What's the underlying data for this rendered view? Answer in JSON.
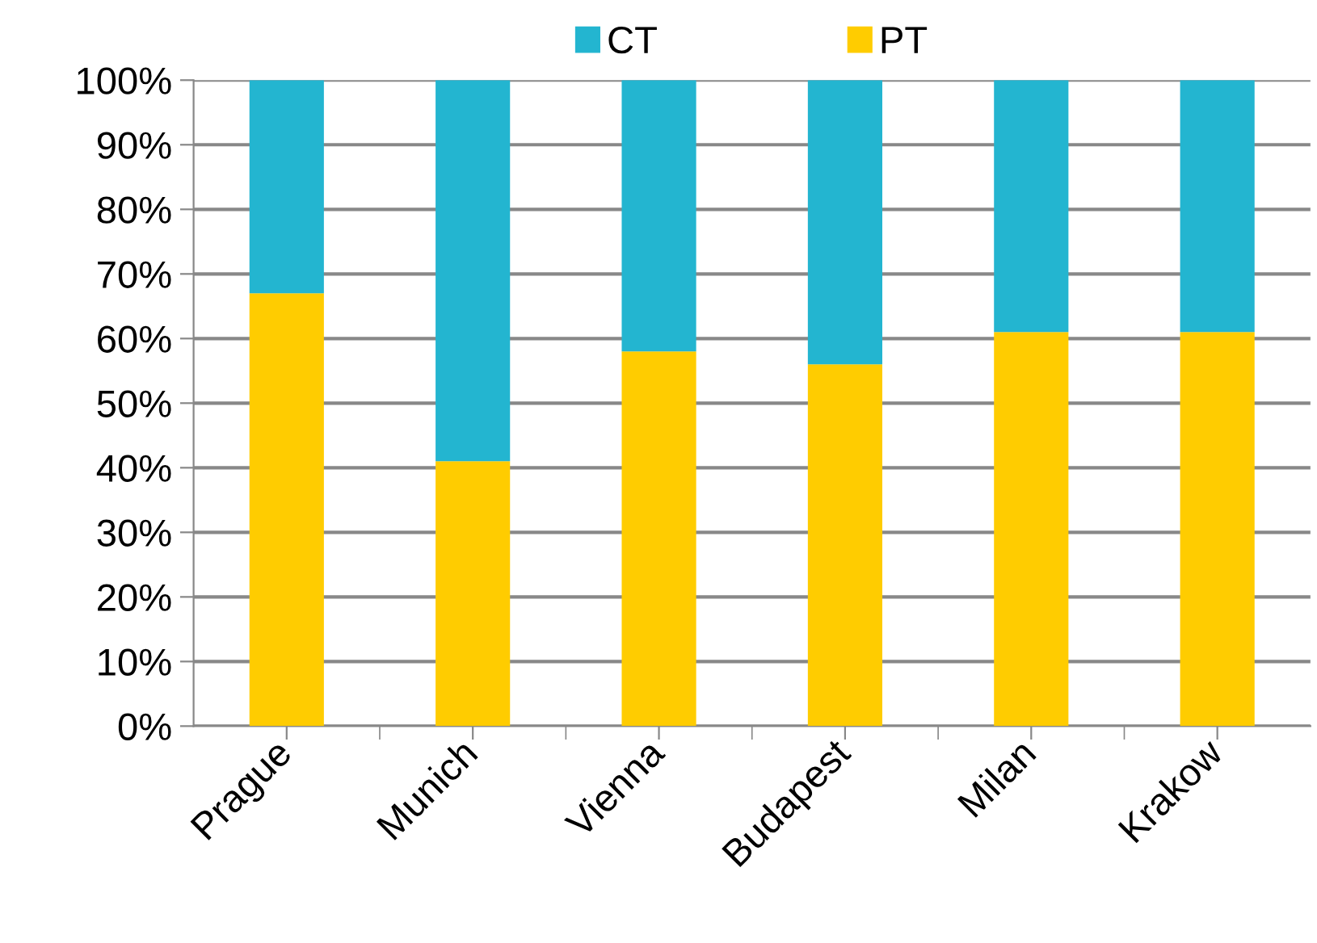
{
  "chart_data": {
    "type": "bar",
    "stacked": true,
    "categories": [
      "Prague",
      "Munich",
      "Vienna",
      "Budapest",
      "Milan",
      "Krakow"
    ],
    "series": [
      {
        "name": "PT",
        "color": "#ffcc00",
        "values": [
          67,
          41,
          58,
          56,
          61,
          61
        ]
      },
      {
        "name": "CT",
        "color": "#23b5d0",
        "values": [
          33,
          59,
          42,
          44,
          39,
          39
        ]
      }
    ],
    "ylim": [
      0,
      100
    ],
    "yticks": [
      {
        "value": 0,
        "label": "0%"
      },
      {
        "value": 10,
        "label": "10%"
      },
      {
        "value": 20,
        "label": "20%"
      },
      {
        "value": 30,
        "label": "30%"
      },
      {
        "value": 40,
        "label": "40%"
      },
      {
        "value": 50,
        "label": "50%"
      },
      {
        "value": 60,
        "label": "60%"
      },
      {
        "value": 70,
        "label": "70%"
      },
      {
        "value": 80,
        "label": "80%"
      },
      {
        "value": 90,
        "label": "90%"
      },
      {
        "value": 100,
        "label": "100%"
      }
    ],
    "grid": "y",
    "legend": "top"
  }
}
